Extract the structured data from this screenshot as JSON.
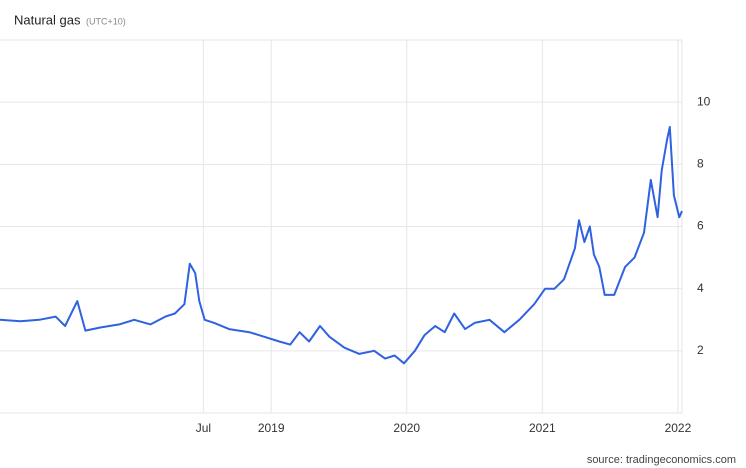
{
  "chart_data": {
    "type": "line",
    "title": "Natural gas",
    "subtitle": "(UTC+10)",
    "source": "source: tradingeconomics.com",
    "x": [
      2017.0,
      2017.15,
      2017.29,
      2017.41,
      2017.48,
      2017.57,
      2017.63,
      2017.74,
      2017.88,
      2017.99,
      2018.11,
      2018.22,
      2018.29,
      2018.36,
      2018.4,
      2018.44,
      2018.47,
      2018.51,
      2018.58,
      2018.69,
      2018.84,
      2018.95,
      2019.06,
      2019.14,
      2019.21,
      2019.28,
      2019.36,
      2019.43,
      2019.54,
      2019.65,
      2019.76,
      2019.84,
      2019.91,
      2019.98,
      2020.06,
      2020.13,
      2020.21,
      2020.28,
      2020.35,
      2020.43,
      2020.5,
      2020.61,
      2020.72,
      2020.83,
      2020.94,
      2021.02,
      2021.09,
      2021.16,
      2021.24,
      2021.27,
      2021.31,
      2021.35,
      2021.38,
      2021.42,
      2021.46,
      2021.53,
      2021.61,
      2021.68,
      2021.75,
      2021.8,
      2021.85,
      2021.88,
      2021.92,
      2021.94,
      2021.97,
      2022.01,
      2022.03
    ],
    "series": [
      {
        "name": "Natural gas",
        "color": "#2f62e0",
        "values": [
          3.0,
          2.95,
          3.0,
          3.1,
          2.8,
          3.6,
          2.65,
          2.75,
          2.85,
          3.0,
          2.85,
          3.1,
          3.2,
          3.5,
          4.8,
          4.5,
          3.6,
          3.0,
          2.9,
          2.7,
          2.6,
          2.45,
          2.3,
          2.2,
          2.6,
          2.3,
          2.8,
          2.45,
          2.1,
          1.9,
          2.0,
          1.75,
          1.85,
          1.6,
          2.0,
          2.5,
          2.8,
          2.6,
          3.2,
          2.7,
          2.9,
          3.0,
          2.6,
          3.0,
          3.5,
          4.0,
          4.0,
          4.3,
          5.3,
          6.2,
          5.5,
          6.0,
          5.1,
          4.7,
          3.8,
          3.8,
          4.7,
          5.0,
          5.8,
          7.5,
          6.3,
          7.8,
          8.8,
          9.2,
          7.0,
          6.3,
          6.5
        ]
      }
    ],
    "xlim": [
      2017.0,
      2022.03
    ],
    "xticks": [
      {
        "value": 2018.5,
        "label": "Jul"
      },
      2019,
      2020,
      2021,
      2022
    ],
    "ylim": [
      0,
      12
    ],
    "yticks": [
      2,
      4,
      6,
      8,
      10
    ],
    "grid": true
  }
}
